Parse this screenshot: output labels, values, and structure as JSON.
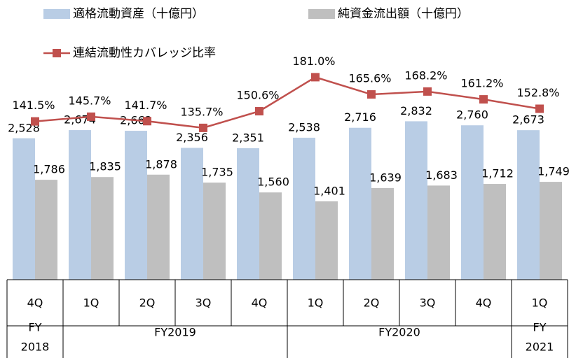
{
  "chart_data": {
    "type": "bar",
    "categories": [
      "4Q",
      "1Q",
      "2Q",
      "3Q",
      "4Q",
      "1Q",
      "2Q",
      "3Q",
      "4Q",
      "1Q"
    ],
    "groups": [
      {
        "lines": [
          "FY",
          "2018"
        ],
        "span": 1
      },
      {
        "lines": [
          "FY2019"
        ],
        "span": 4
      },
      {
        "lines": [
          "FY2020"
        ],
        "span": 4
      },
      {
        "lines": [
          "FY",
          "2021"
        ],
        "span": 1
      }
    ],
    "series": [
      {
        "name": "適格流動資産（十億円）",
        "type": "bar",
        "color": "#b9cde5",
        "values": [
          2528,
          2674,
          2662,
          2356,
          2351,
          2538,
          2716,
          2832,
          2760,
          2673
        ],
        "value_labels": [
          "2,528",
          "2,674",
          "2,662",
          "2,356",
          "2,351",
          "2,538",
          "2,716",
          "2,832",
          "2,760",
          "2,673"
        ]
      },
      {
        "name": "純資金流出額（十億円）",
        "type": "bar",
        "color": "#bfbfbf",
        "values": [
          1786,
          1835,
          1878,
          1735,
          1560,
          1401,
          1639,
          1683,
          1712,
          1749
        ],
        "value_labels": [
          "1,786",
          "1,835",
          "1,878",
          "1,735",
          "1,560",
          "1,401",
          "1,639",
          "1,683",
          "1,712",
          "1,749"
        ]
      },
      {
        "name": "連結流動性カバレッジ比率",
        "type": "line",
        "axis": "y2",
        "color": "#c0504d",
        "values": [
          141.5,
          145.7,
          141.7,
          135.7,
          150.6,
          181.0,
          165.6,
          168.2,
          161.2,
          152.8
        ],
        "value_labels": [
          "141.5%",
          "145.7%",
          "141.7%",
          "135.7%",
          "150.6%",
          "181.0%",
          "165.6%",
          "168.2%",
          "161.2%",
          "152.8%"
        ]
      }
    ],
    "ylim": [
      0,
      5000
    ],
    "y2lim": [
      0,
      250
    ]
  }
}
